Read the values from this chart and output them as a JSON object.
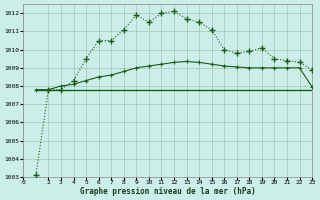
{
  "background_color": "#cceee8",
  "grid_color": "#aaccbb",
  "line_color_dark": "#1a5c1a",
  "line_color_med": "#2a7a2a",
  "xlabel": "Graphe pression niveau de la mer (hPa)",
  "ylim": [
    1003,
    1012.5
  ],
  "xlim": [
    0,
    23
  ],
  "yticks": [
    1003,
    1004,
    1005,
    1006,
    1007,
    1008,
    1009,
    1010,
    1011,
    1012
  ],
  "xticks": [
    0,
    2,
    3,
    4,
    5,
    6,
    7,
    8,
    9,
    10,
    11,
    12,
    13,
    14,
    15,
    16,
    17,
    18,
    19,
    20,
    21,
    22,
    23
  ],
  "series1_x": [
    1,
    2,
    3,
    4,
    5,
    6,
    7,
    8,
    9,
    10,
    11,
    12,
    13,
    14,
    15,
    16,
    17,
    18,
    19,
    20,
    21,
    22,
    23
  ],
  "series1_y": [
    1003.1,
    1007.8,
    1007.8,
    1008.3,
    1009.5,
    1010.5,
    1010.5,
    1011.1,
    1011.9,
    1011.5,
    1012.0,
    1012.1,
    1011.7,
    1011.5,
    1011.1,
    1010.0,
    1009.8,
    1009.9,
    1010.1,
    1009.5,
    1009.4,
    1009.3,
    1008.9
  ],
  "series2_x": [
    1,
    2,
    3,
    4,
    5,
    6,
    7,
    8,
    9,
    10,
    11,
    12,
    13,
    14,
    15,
    16,
    17,
    18,
    19,
    20,
    21,
    22,
    23
  ],
  "series2_y": [
    1007.8,
    1007.8,
    1008.0,
    1008.1,
    1008.3,
    1008.5,
    1008.6,
    1008.8,
    1009.0,
    1009.1,
    1009.2,
    1009.3,
    1009.35,
    1009.3,
    1009.2,
    1009.1,
    1009.05,
    1009.0,
    1009.0,
    1009.0,
    1009.0,
    1009.0,
    1007.95
  ],
  "series3_x": [
    1,
    2,
    3,
    4,
    5,
    6,
    7,
    8,
    9,
    10,
    11,
    12,
    13,
    14,
    15,
    16,
    17,
    18,
    19,
    20,
    21,
    22,
    23
  ],
  "series3_y": [
    1007.8,
    1007.8,
    1007.8,
    1007.8,
    1007.8,
    1007.8,
    1007.8,
    1007.8,
    1007.8,
    1007.8,
    1007.8,
    1007.8,
    1007.8,
    1007.8,
    1007.8,
    1007.8,
    1007.8,
    1007.8,
    1007.8,
    1007.8,
    1007.8,
    1007.8,
    1007.8
  ]
}
